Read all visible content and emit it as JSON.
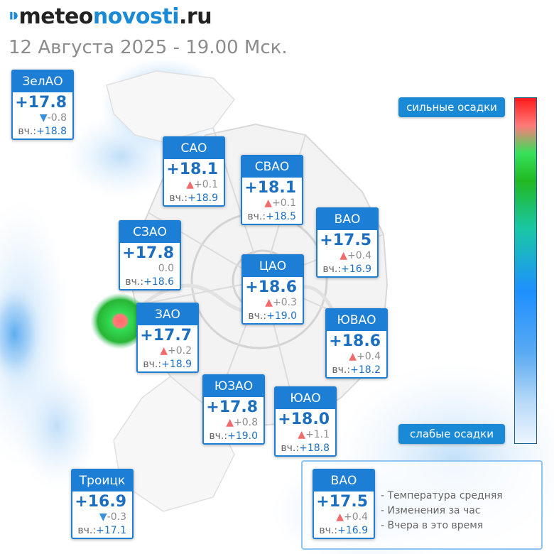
{
  "logo": {
    "mark": "⁍",
    "part1": "meteo",
    "part2": "novosti",
    "part3": ".ru"
  },
  "subtitle": "12 Августа 2025 - 19.00 Мск.",
  "scale": {
    "top_label": "сильные осадки",
    "bottom_label": "слабые осадки"
  },
  "districts": [
    {
      "name": "ЗелАО",
      "temp": "+17.8",
      "dir": "down",
      "arrow": "▼",
      "change": "-0.8",
      "yest_label": "вч.:",
      "yest": "+18.8"
    },
    {
      "name": "САО",
      "temp": "+18.1",
      "dir": "up",
      "arrow": "▲",
      "change": "+0.1",
      "yest_label": "вч.:",
      "yest": "+18.9"
    },
    {
      "name": "СВАО",
      "temp": "+18.1",
      "dir": "up",
      "arrow": "▲",
      "change": "+0.1",
      "yest_label": "вч.:",
      "yest": "+18.5"
    },
    {
      "name": "ВАО",
      "temp": "+17.5",
      "dir": "up",
      "arrow": "▲",
      "change": "+0.4",
      "yest_label": "вч.:",
      "yest": "+16.9"
    },
    {
      "name": "СЗАО",
      "temp": "+17.8",
      "dir": "none",
      "arrow": "",
      "change": "0.0",
      "yest_label": "вч.:",
      "yest": "+18.6"
    },
    {
      "name": "ЦАО",
      "temp": "+18.6",
      "dir": "up",
      "arrow": "▲",
      "change": "+0.3",
      "yest_label": "вч.:",
      "yest": "+19.0"
    },
    {
      "name": "ЗАО",
      "temp": "+17.7",
      "dir": "up",
      "arrow": "▲",
      "change": "+0.2",
      "yest_label": "вч.:",
      "yest": "+18.9"
    },
    {
      "name": "ЮВАО",
      "temp": "+18.6",
      "dir": "up",
      "arrow": "▲",
      "change": "+0.4",
      "yest_label": "вч.:",
      "yest": "+18.2"
    },
    {
      "name": "ЮЗАО",
      "temp": "+17.8",
      "dir": "up",
      "arrow": "▲",
      "change": "+0.8",
      "yest_label": "вч.:",
      "yest": "+19.0"
    },
    {
      "name": "ЮАО",
      "temp": "+18.0",
      "dir": "up",
      "arrow": "▲",
      "change": "+1.1",
      "yest_label": "вч.:",
      "yest": "+18.8"
    },
    {
      "name": "Троицк",
      "temp": "+16.9",
      "dir": "down",
      "arrow": "▼",
      "change": "-0.3",
      "yest_label": "вч.:",
      "yest": "+17.1"
    }
  ],
  "legend": {
    "sample": {
      "name": "ВАО",
      "temp": "+17.5",
      "dir": "up",
      "arrow": "▲",
      "change": "+0.4",
      "yest_label": "вч.:",
      "yest": "+16.9"
    },
    "lines": [
      "- Температура средняя",
      "- Изменения за час",
      "- Вчера в это время"
    ]
  },
  "colors": {
    "brand": "#1a8ad6",
    "card_header": "#1c7ed4",
    "up": "#f26b6b",
    "down": "#3a8fe0"
  }
}
